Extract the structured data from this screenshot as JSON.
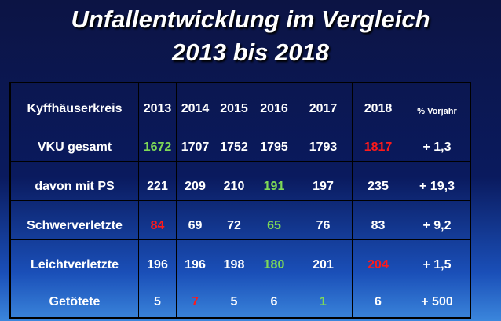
{
  "title": {
    "line1": "Unfallentwicklung im Vergleich",
    "line2": "2013 bis 2018"
  },
  "colors": {
    "highlight_low": "#7ed957",
    "highlight_high": "#ff1a1a",
    "text": "#ffffff"
  },
  "table": {
    "header": {
      "label": "Kyffhäuserkreis",
      "years": [
        "2013",
        "2014",
        "2015",
        "2016",
        "2017",
        "2018"
      ],
      "pct": "% Vorjahr"
    },
    "rows": [
      {
        "label": "VKU gesamt",
        "values": [
          "1672",
          "1707",
          "1752",
          "1795",
          "1793",
          "1817"
        ],
        "pct": "+ 1,3",
        "low_index": 0,
        "high_index": 5
      },
      {
        "label": "davon mit PS",
        "values": [
          "221",
          "209",
          "210",
          "191",
          "197",
          "235"
        ],
        "pct": "+ 19,3",
        "low_index": 3,
        "high_index": null
      },
      {
        "label": "Schwerverletzte",
        "values": [
          "84",
          "69",
          "72",
          "65",
          "76",
          "83"
        ],
        "pct": "+ 9,2",
        "low_index": 3,
        "high_index": 0
      },
      {
        "label": "Leichtverletzte",
        "values": [
          "196",
          "196",
          "198",
          "180",
          "201",
          "204"
        ],
        "pct": "+ 1,5",
        "low_index": 3,
        "high_index": 5
      },
      {
        "label": "Getötete",
        "values": [
          "5",
          "7",
          "5",
          "6",
          "1",
          "6"
        ],
        "pct": "+ 500",
        "low_index": 4,
        "high_index": 1
      }
    ]
  }
}
